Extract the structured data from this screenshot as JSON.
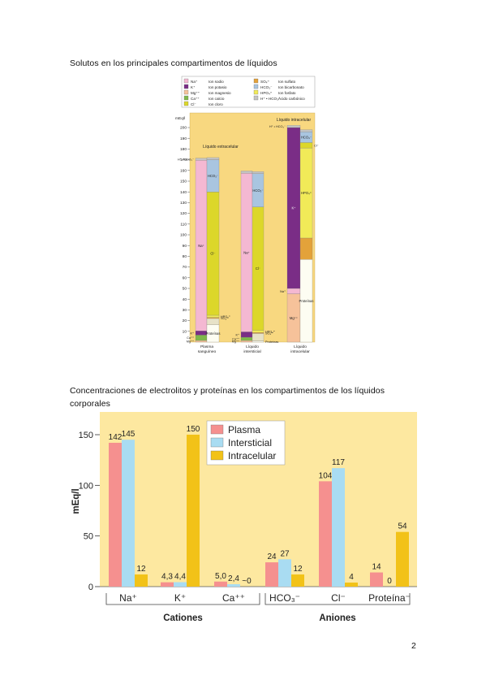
{
  "page": {
    "heading1": "Solutos en los principales compartimentos de líquidos",
    "heading2": "Concentraciones de electrolitos y proteínas en los compartimentos de los líquidos corporales",
    "page_number": "2"
  },
  "chart_data": [
    {
      "type": "bar",
      "subtype": "stacked",
      "title": "",
      "ylabel": "mEq/l",
      "ylim": [
        0,
        205
      ],
      "yticks": [
        10,
        20,
        30,
        40,
        50,
        60,
        70,
        80,
        90,
        100,
        110,
        120,
        130,
        140,
        150,
        160,
        170,
        180,
        190,
        200
      ],
      "legend": [
        {
          "abbr": "Na⁺",
          "label": "Ion sodio",
          "color": "#f4b8d2"
        },
        {
          "abbr": "K⁺",
          "label": "Ion potasio",
          "color": "#7a2d86"
        },
        {
          "abbr": "Mg⁺⁺",
          "label": "Ion magnesio",
          "color": "#f6c29a"
        },
        {
          "abbr": "Ca⁺⁺",
          "label": "Ion calcio",
          "color": "#7fb84a"
        },
        {
          "abbr": "Cl⁻",
          "label": "Ion cloro",
          "color": "#dcd72a"
        },
        {
          "abbr": "SO₄⁼",
          "label": "Ion sulfato",
          "color": "#e3a23a"
        },
        {
          "abbr": "HCO₃⁻",
          "label": "Ion bicarbonato",
          "color": "#a9c5e0"
        },
        {
          "abbr": "HPO₄⁼",
          "label": "Ion fosfato",
          "color": "#f1ea58"
        },
        {
          "abbr": "H⁺ • HCO₃⁻",
          "label": "Ácido carbónico",
          "color": "#c4c4c4"
        }
      ],
      "zone_labels": [
        "Líquido extracelular",
        "Líquido intracelular"
      ],
      "columns": [
        {
          "name": "Plasma sanguíneo",
          "cations": [
            {
              "ion": "Mg⁺⁺",
              "value": 1.5,
              "color": "#f6c29a",
              "label": "Mg⁺⁺"
            },
            {
              "ion": "Ca⁺⁺",
              "value": 5,
              "color": "#7fb84a",
              "label": "Ca⁺⁺"
            },
            {
              "ion": "K⁺",
              "value": 4,
              "color": "#7a2d86",
              "label": "K⁺"
            },
            {
              "ion": "Na⁺",
              "value": 159,
              "color": "#f4b8d2",
              "label": "Na⁺"
            },
            {
              "ion": "H⁺ • HCO₃⁻",
              "value": 2,
              "color": "#c4c4c4",
              "label": "H⁺ • HCO₃⁻"
            }
          ],
          "anions": [
            {
              "ion": "Proteínas",
              "value": 16,
              "color": "#fdfdf2",
              "label": "Proteínas"
            },
            {
              "ion": "Ácidos orgánicos",
              "value": 6,
              "color": "#e7e2c7",
              "label": ""
            },
            {
              "ion": "SO₄⁼",
              "value": 1,
              "color": "#e3a23a",
              "label": "SO₄⁼"
            },
            {
              "ion": "HPO₄⁼",
              "value": 2,
              "color": "#f1ea58",
              "label": "HPO₄⁼"
            },
            {
              "ion": "Cl⁻",
              "value": 115,
              "color": "#dcd72a",
              "label": "Cl⁻"
            },
            {
              "ion": "HCO₃⁻",
              "value": 30,
              "color": "#a9c5e0",
              "label": "HCO₃⁻"
            },
            {
              "ion": "H⁺ • HCO₃⁻",
              "value": 2,
              "color": "#c4c4c4",
              "label": ""
            }
          ]
        },
        {
          "name": "Líquido intersticial",
          "cations": [
            {
              "ion": "Mg⁺⁺",
              "value": 1.5,
              "color": "#f6c29a",
              "label": "Mg⁺⁺"
            },
            {
              "ion": "Ca⁺⁺",
              "value": 3,
              "color": "#7fb84a",
              "label": "Ca⁺⁺"
            },
            {
              "ion": "K⁺",
              "value": 5,
              "color": "#7a2d86",
              "label": "K⁺"
            },
            {
              "ion": "Na⁺",
              "value": 148,
              "color": "#f4b8d2",
              "label": "Na⁺"
            },
            {
              "ion": "H⁺ • HCO₃⁻",
              "value": 2,
              "color": "#c4c4c4",
              "label": ""
            }
          ],
          "anions": [
            {
              "ion": "Proteínas",
              "value": 1,
              "color": "#fdfdf2",
              "label": "Proteínas"
            },
            {
              "ion": "Ácidos orgánicos",
              "value": 7,
              "color": "#e7e2c7",
              "label": ""
            },
            {
              "ion": "SO₄⁼",
              "value": 1,
              "color": "#e3a23a",
              "label": "SO₄⁼"
            },
            {
              "ion": "HPO₄⁼",
              "value": 2,
              "color": "#f1ea58",
              "label": "HPO₄⁼"
            },
            {
              "ion": "Cl⁻",
              "value": 115,
              "color": "#dcd72a",
              "label": "Cl⁻"
            },
            {
              "ion": "HCO₃⁻",
              "value": 31,
              "color": "#a9c5e0",
              "label": "HCO₃⁻"
            },
            {
              "ion": "H⁺ • HCO₃⁻",
              "value": 2,
              "color": "#c4c4c4",
              "label": ""
            }
          ]
        },
        {
          "name": "Líquido intracelular",
          "cations": [
            {
              "ion": "Mg⁺⁺",
              "value": 45,
              "color": "#f6c29a",
              "label": "Mg⁺⁺"
            },
            {
              "ion": "Na⁺",
              "value": 5,
              "color": "#f4b8d2",
              "label": "Na⁺"
            },
            {
              "ion": "K⁺",
              "value": 150,
              "color": "#7a2d86",
              "label": "K⁺"
            },
            {
              "ion": "H⁺ • HCO₃⁻",
              "value": 2,
              "color": "#c4c4c4",
              "label": "H⁺ • HCO₃⁻"
            }
          ],
          "anions": [
            {
              "ion": "Proteínas",
              "value": 77,
              "color": "#fdfdf2",
              "label": "Proteínas"
            },
            {
              "ion": "SO₄⁼",
              "value": 20,
              "color": "#e3a23a",
              "label": ""
            },
            {
              "ion": "HPO₄⁼",
              "value": 84,
              "color": "#f1ea58",
              "label": "HPO₄⁼"
            },
            {
              "ion": "Cl⁻",
              "value": 5,
              "color": "#dcd72a",
              "label": "Cl⁻"
            },
            {
              "ion": "HCO₃⁻",
              "value": 10,
              "color": "#a9c5e0",
              "label": "HCO₃⁻"
            },
            {
              "ion": "H⁺ • HCO₃⁻",
              "value": 2,
              "color": "#c4c4c4",
              "label": ""
            }
          ]
        }
      ]
    },
    {
      "type": "bar",
      "ylabel": "mEq/l",
      "ylim": [
        0,
        170
      ],
      "yticks": [
        0,
        50,
        100,
        150
      ],
      "legend_position": "top-center",
      "categories": [
        "Na⁺",
        "K⁺",
        "Ca⁺⁺",
        "HCO₃⁻",
        "Cl⁻",
        "Proteína⁻"
      ],
      "groups": [
        {
          "label": "Cationes",
          "categories": [
            "Na⁺",
            "K⁺",
            "Ca⁺⁺"
          ]
        },
        {
          "label": "Aniones",
          "categories": [
            "HCO₃⁻",
            "Cl⁻",
            "Proteína⁻"
          ]
        }
      ],
      "series": [
        {
          "name": "Plasma",
          "color": "#f5908f",
          "values": [
            142,
            4.3,
            5.0,
            24,
            104,
            14
          ],
          "labels": [
            "142",
            "4,3",
            "5,0",
            "24",
            "104",
            "14"
          ]
        },
        {
          "name": "Intersticial",
          "color": "#a9dcf2",
          "values": [
            145,
            4.4,
            2.4,
            27,
            117,
            0
          ],
          "labels": [
            "145",
            "4,4",
            "2,4",
            "27",
            "117",
            "0"
          ]
        },
        {
          "name": "Intracelular",
          "color": "#f2c218",
          "values": [
            12,
            150,
            0,
            12,
            4,
            54
          ],
          "labels": [
            "12",
            "150",
            "~0",
            "12",
            "4",
            "54"
          ]
        }
      ]
    }
  ]
}
